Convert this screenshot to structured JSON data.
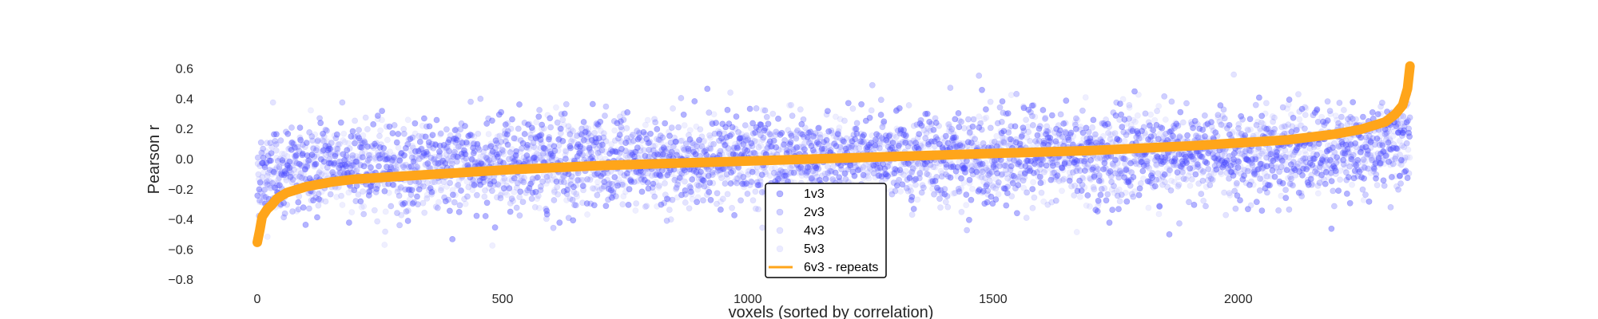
{
  "chart_data": {
    "type": "scatter",
    "xlabel": "voxels (sorted by correlation)",
    "ylabel": "Pearson r",
    "xlim": [
      -50,
      2450
    ],
    "ylim": [
      -0.82,
      0.72
    ],
    "xticks": [
      0,
      500,
      1000,
      1500,
      2000
    ],
    "yticks": [
      -0.8,
      -0.6,
      -0.4,
      -0.2,
      0.0,
      0.2,
      0.4,
      0.6
    ],
    "xtick_labels": [
      "0",
      "500",
      "1000",
      "1500",
      "2000"
    ],
    "ytick_labels": [
      "−0.8",
      "−0.6",
      "−0.4",
      "−0.2",
      "0.0",
      "0.2",
      "0.4",
      "0.6"
    ],
    "grid": false,
    "legend_position": "bottom-center",
    "n_voxels": 2350,
    "series": [
      {
        "name": "1v3",
        "kind": "scatter",
        "color": "#4a4aff",
        "opacity": 0.42,
        "spread": 0.16
      },
      {
        "name": "2v3",
        "kind": "scatter",
        "color": "#6a6aff",
        "opacity": 0.32,
        "spread": 0.15
      },
      {
        "name": "4v3",
        "kind": "scatter",
        "color": "#8a8aff",
        "opacity": 0.24,
        "spread": 0.14
      },
      {
        "name": "5v3",
        "kind": "scatter",
        "color": "#b0b0ff",
        "opacity": 0.2,
        "spread": 0.13
      },
      {
        "name": "6v3 - repeats",
        "kind": "line",
        "color": "#ffa51a"
      }
    ],
    "repeats_curve": {
      "x": [
        0,
        5,
        10,
        20,
        30,
        40,
        60,
        100,
        150,
        200,
        300,
        400,
        500,
        700,
        900,
        1100,
        1300,
        1500,
        1700,
        1900,
        2000,
        2100,
        2150,
        2200,
        2250,
        2300,
        2320,
        2335,
        2345,
        2350
      ],
      "y": [
        -0.55,
        -0.47,
        -0.38,
        -0.33,
        -0.3,
        -0.26,
        -0.22,
        -0.18,
        -0.15,
        -0.13,
        -0.11,
        -0.09,
        -0.07,
        -0.04,
        -0.02,
        0.0,
        0.02,
        0.04,
        0.06,
        0.09,
        0.11,
        0.13,
        0.15,
        0.17,
        0.2,
        0.25,
        0.3,
        0.36,
        0.47,
        0.62
      ]
    }
  }
}
